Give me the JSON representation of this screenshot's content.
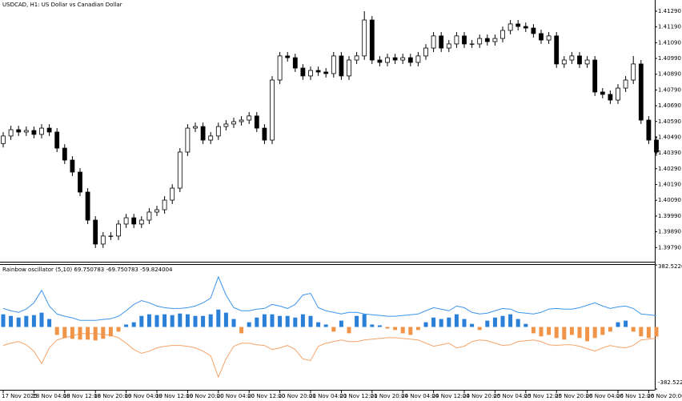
{
  "chart_data": [
    {
      "type": "candlestick",
      "title": "USDCAD, H1: US Dollar vs Canadian Dollar",
      "categories": [
        "17 Nov 2025",
        null,
        null,
        null,
        "18 Nov 04:00",
        null,
        null,
        null,
        "18 Nov 12:00",
        null,
        null,
        null,
        "18 Nov 20:00",
        null,
        null,
        null,
        "19 Nov 04:00",
        null,
        null,
        null,
        "19 Nov 12:00",
        null,
        null,
        null,
        "19 Nov 20:00",
        null,
        null,
        null,
        "20 Nov 04:00",
        null,
        null,
        null,
        "20 Nov 12:00",
        null,
        null,
        null,
        "20 Nov 20:00",
        null,
        null,
        null,
        "21 Nov 04:00",
        null,
        null,
        null,
        "21 Nov 12:00",
        null,
        null,
        null,
        "21 Nov 20:00",
        null,
        null,
        null,
        "24 Nov 04:00",
        null,
        null,
        null,
        "24 Nov 12:00",
        null,
        null,
        null,
        "24 Nov 20:00",
        null,
        null,
        null,
        "25 Nov 04:00",
        null,
        null,
        null,
        "25 Nov 12:00",
        null,
        null,
        null,
        "25 Nov 20:00",
        null,
        null,
        null,
        "26 Nov 04:00",
        null,
        null,
        null,
        "26 Nov 12:00",
        null,
        null,
        null,
        "26 Nov 20:00",
        null
      ],
      "open": [
        1.4045,
        1.40498,
        1.40538,
        1.40523,
        1.40533,
        1.40508,
        1.40548,
        1.40523,
        1.40421,
        1.40345,
        1.40269,
        1.40142,
        1.39964,
        1.39812,
        1.39863,
        1.39863,
        1.39939,
        1.39979,
        1.39939,
        1.39964,
        1.40015,
        1.4003,
        1.40091,
        1.40167,
        1.40396,
        1.40548,
        1.40558,
        1.40472,
        1.40498,
        1.40558,
        1.40574,
        1.40589,
        1.40599,
        1.40625,
        1.40548,
        1.40472,
        1.40853,
        1.41006,
        1.40995,
        1.40929,
        1.40879,
        1.40914,
        1.40904,
        1.40894,
        1.41006,
        1.40879,
        1.4098,
        1.41006,
        1.41234,
        1.4098,
        1.40965,
        1.40995,
        1.4098,
        1.40995,
        1.40965,
        1.41006,
        1.41056,
        1.41133,
        1.41056,
        1.41082,
        1.41133,
        1.41082,
        1.41082,
        1.41117,
        1.41097,
        1.41117,
        1.41168,
        1.41209,
        1.41193,
        1.41183,
        1.41148,
        1.41107,
        1.41133,
        1.40955,
        1.4098,
        1.41006,
        1.40955,
        1.4098,
        1.40777,
        1.40762,
        1.40726,
        1.40802,
        1.40853,
        1.40955,
        1.40599,
        1.40472
      ],
      "high": [
        1.40523,
        1.40563,
        1.40563,
        1.40558,
        1.40558,
        1.40573,
        1.40573,
        1.40548,
        1.40446,
        1.4037,
        1.40294,
        1.40167,
        1.39989,
        1.39888,
        1.39888,
        1.39964,
        1.40004,
        1.40004,
        1.39989,
        1.4004,
        1.40055,
        1.40116,
        1.40192,
        1.40421,
        1.40573,
        1.40583,
        1.40583,
        1.40523,
        1.40583,
        1.40599,
        1.40614,
        1.40624,
        1.4065,
        1.4065,
        1.40573,
        1.40878,
        1.41031,
        1.41031,
        1.4102,
        1.40954,
        1.40939,
        1.40939,
        1.40929,
        1.41031,
        1.41031,
        1.41005,
        1.41031,
        1.4129,
        1.41259,
        1.41005,
        1.4102,
        1.4102,
        1.4102,
        1.4102,
        1.41031,
        1.41081,
        1.41158,
        1.41158,
        1.41107,
        1.41158,
        1.41158,
        1.41107,
        1.41142,
        1.41142,
        1.41142,
        1.41193,
        1.41234,
        1.41234,
        1.41218,
        1.41208,
        1.41173,
        1.41158,
        1.41158,
        1.41005,
        1.41031,
        1.41031,
        1.41005,
        1.41005,
        1.40802,
        1.40787,
        1.40827,
        1.40878,
        1.41006,
        1.4098,
        1.40624,
        1.40497
      ],
      "low": [
        1.40425,
        1.40473,
        1.40498,
        1.40498,
        1.40483,
        1.40483,
        1.40498,
        1.40396,
        1.4032,
        1.40244,
        1.40117,
        1.39939,
        1.39787,
        1.39787,
        1.39838,
        1.39838,
        1.39914,
        1.39914,
        1.39914,
        1.39939,
        1.3999,
        1.40005,
        1.40066,
        1.40142,
        1.40371,
        1.40523,
        1.40447,
        1.40447,
        1.40473,
        1.40533,
        1.40549,
        1.40564,
        1.40574,
        1.40523,
        1.40447,
        1.40447,
        1.40828,
        1.4097,
        1.40904,
        1.40854,
        1.40854,
        1.40879,
        1.40869,
        1.40869,
        1.40854,
        1.40854,
        1.40955,
        1.40981,
        1.40955,
        1.4094,
        1.4094,
        1.40955,
        1.40955,
        1.4094,
        1.4094,
        1.40981,
        1.41031,
        1.41031,
        1.41031,
        1.41057,
        1.41057,
        1.41057,
        1.41057,
        1.41072,
        1.41072,
        1.41092,
        1.41143,
        1.41168,
        1.41158,
        1.41123,
        1.41082,
        1.41082,
        1.4093,
        1.4093,
        1.40955,
        1.4093,
        1.4093,
        1.40752,
        1.40737,
        1.40701,
        1.40701,
        1.40777,
        1.40828,
        1.40574,
        1.40447,
        1.40371
      ],
      "close": [
        1.40498,
        1.40538,
        1.40523,
        1.40533,
        1.40508,
        1.40548,
        1.40523,
        1.40421,
        1.40345,
        1.40269,
        1.40142,
        1.39964,
        1.39812,
        1.39863,
        1.39863,
        1.39939,
        1.39979,
        1.39939,
        1.39964,
        1.40015,
        1.4003,
        1.40091,
        1.40167,
        1.40396,
        1.40548,
        1.40558,
        1.40472,
        1.40498,
        1.40558,
        1.40574,
        1.40589,
        1.40599,
        1.40625,
        1.40548,
        1.40472,
        1.40853,
        1.41006,
        1.40995,
        1.40929,
        1.40879,
        1.40914,
        1.40904,
        1.40894,
        1.41006,
        1.40879,
        1.4098,
        1.41006,
        1.41234,
        1.4098,
        1.40965,
        1.40995,
        1.4098,
        1.40995,
        1.40965,
        1.41006,
        1.41056,
        1.41133,
        1.41056,
        1.41082,
        1.41133,
        1.41082,
        1.41082,
        1.41117,
        1.41097,
        1.41117,
        1.41168,
        1.41209,
        1.41193,
        1.41183,
        1.41148,
        1.41107,
        1.41133,
        1.40955,
        1.4098,
        1.41006,
        1.40955,
        1.4098,
        1.40777,
        1.40762,
        1.40726,
        1.40802,
        1.40853,
        1.40955,
        1.40599,
        1.40472,
        1.40396
      ],
      "up_color": "#ffffff",
      "down_color": "#000000",
      "color": "#000000",
      "ylim": [
        1.397,
        1.41361
      ],
      "yticks": [
        {
          "value": 1.3979,
          "label": "1.39790"
        },
        {
          "value": 1.3989,
          "label": "1.39890"
        },
        {
          "value": 1.3999,
          "label": "1.39990"
        },
        {
          "value": 1.4009,
          "label": "1.40090"
        },
        {
          "value": 1.4019,
          "label": "1.40190"
        },
        {
          "value": 1.4029,
          "label": "1.40290"
        },
        {
          "value": 1.4039,
          "label": "1.40390"
        },
        {
          "value": 1.4049,
          "label": "1.40490"
        },
        {
          "value": 1.4059,
          "label": "1.40590"
        },
        {
          "value": 1.4069,
          "label": "1.40690"
        },
        {
          "value": 1.4079,
          "label": "1.40790"
        },
        {
          "value": 1.4089,
          "label": "1.40890"
        },
        {
          "value": 1.4099,
          "label": "1.40990"
        },
        {
          "value": 1.4109,
          "label": "1.41090"
        },
        {
          "value": 1.4119,
          "label": "1.41190"
        },
        {
          "value": 1.4129,
          "label": "1.41290"
        }
      ],
      "grid": false
    },
    {
      "type": "oscillator",
      "title": "Rainbow oscillator (5,10)",
      "series": [
        {
          "kind": "line",
          "color": "#3d95ea",
          "values": [
            114,
            100,
            90,
            110,
            149,
            226,
            129,
            80,
            66,
            56,
            41,
            41,
            41,
            46,
            51,
            66,
            100,
            139,
            163,
            149,
            129,
            119,
            114,
            114,
            119,
            129,
            149,
            178,
            309,
            197,
            119,
            100,
            100,
            110,
            114,
            139,
            129,
            114,
            139,
            197,
            207,
            119,
            100,
            90,
            80,
            90,
            90,
            80,
            75,
            71,
            66,
            66,
            71,
            75,
            80,
            100,
            119,
            110,
            100,
            129,
            119,
            90,
            80,
            85,
            100,
            114,
            110,
            90,
            85,
            80,
            90,
            110,
            114,
            110,
            110,
            119,
            134,
            149,
            129,
            114,
            124,
            129,
            114,
            80,
            75,
            69.750783
          ]
        },
        {
          "kind": "line",
          "color": "#f5a56a",
          "values": [
            -114,
            -100,
            -90,
            -110,
            -149,
            -226,
            -129,
            -80,
            -66,
            -56,
            -41,
            -41,
            -41,
            -46,
            -51,
            -66,
            -100,
            -139,
            -163,
            -149,
            -129,
            -119,
            -114,
            -114,
            -119,
            -129,
            -149,
            -178,
            -309,
            -197,
            -119,
            -100,
            -100,
            -110,
            -114,
            -139,
            -129,
            -114,
            -139,
            -197,
            -207,
            -119,
            -100,
            -90,
            -80,
            -90,
            -90,
            -80,
            -75,
            -71,
            -66,
            -66,
            -71,
            -75,
            -80,
            -100,
            -119,
            -110,
            -100,
            -129,
            -119,
            -90,
            -80,
            -85,
            -100,
            -114,
            -110,
            -90,
            -85,
            -80,
            -90,
            -110,
            -114,
            -110,
            -110,
            -119,
            -134,
            -149,
            -129,
            -114,
            -124,
            -129,
            -114,
            -80,
            -75,
            -69.750783
          ]
        },
        {
          "kind": "histogram",
          "color": "#2a7fd9",
          "negative_color": "#f0944a",
          "values": [
            78,
            68,
            58,
            68,
            73,
            88,
            49,
            -49,
            -68,
            -73,
            -78,
            -78,
            -83,
            -73,
            -58,
            -29,
            15,
            29,
            68,
            78,
            73,
            78,
            73,
            83,
            78,
            68,
            68,
            78,
            107,
            88,
            49,
            -39,
            29,
            58,
            78,
            78,
            68,
            68,
            58,
            78,
            68,
            29,
            15,
            -29,
            39,
            -39,
            68,
            78,
            15,
            10,
            -10,
            -19,
            -39,
            -49,
            -19,
            29,
            58,
            49,
            58,
            78,
            49,
            19,
            -19,
            39,
            58,
            68,
            78,
            49,
            19,
            -39,
            -58,
            -49,
            -68,
            -78,
            -49,
            -68,
            -88,
            -68,
            -49,
            -29,
            29,
            39,
            -29,
            -58,
            -68,
            -59.824004
          ]
        }
      ],
      "ylim": [
        -382.522645,
        382.522645
      ],
      "yticks": [
        382.522645,
        -382.522645
      ]
    }
  ]
}
